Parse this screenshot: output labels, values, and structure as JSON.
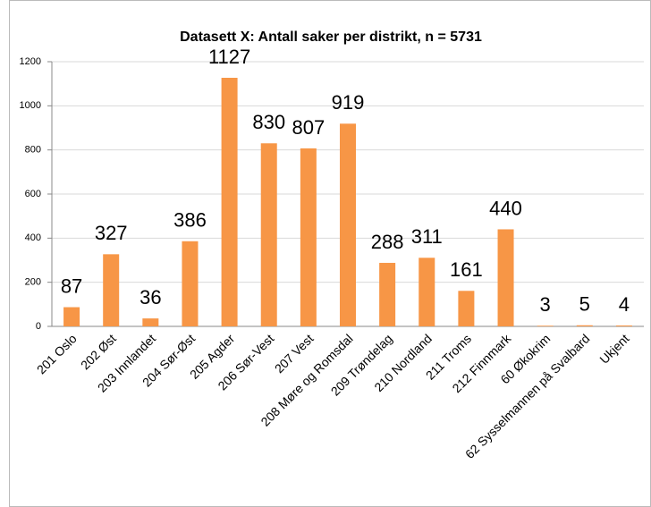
{
  "chart_data": {
    "type": "bar",
    "title": "Datasett X: Antall saker per distrikt, n = 5731",
    "categories": [
      "201 Oslo",
      "202 Øst",
      "203 Innlandet",
      "204 Sør-Øst",
      "205 Agder",
      "206 Sør-Vest",
      "207 Vest",
      "208 Møre og Romsdal",
      "209 Trøndelag",
      "210 Nordland",
      "211 Troms",
      "212 Finnmark",
      "60 Økokrim",
      "62 Sysselmannen på Svalbard",
      "Ukjent"
    ],
    "values": [
      87,
      327,
      36,
      386,
      1127,
      830,
      807,
      919,
      288,
      311,
      161,
      440,
      3,
      5,
      4
    ],
    "color": "#f79646",
    "ylim": [
      0,
      1200
    ],
    "yticks": [
      0,
      200,
      400,
      600,
      800,
      1000,
      1200
    ],
    "grid": true
  }
}
